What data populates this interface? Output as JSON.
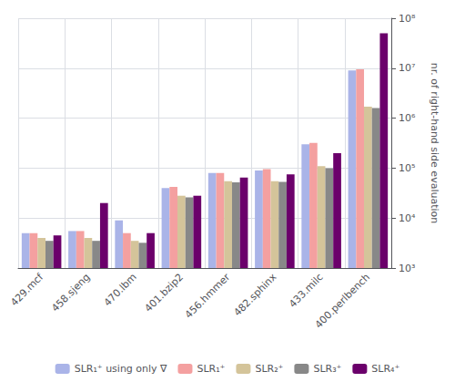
{
  "chart_data": {
    "type": "bar",
    "y_label": "nr. of right-hand side evaluation",
    "categories": [
      "429.mcf",
      "458.sjeng",
      "470.lbm",
      "401.bzip2",
      "456.hmmer",
      "482.sphinx",
      "433.milc",
      "400.perlbench"
    ],
    "series": [
      {
        "name": "SLR₁⁺ using only ∇",
        "color": "#aab4e8",
        "values": [
          5000,
          5500,
          9000,
          40000,
          80000,
          90000,
          300000,
          9000000
        ]
      },
      {
        "name": "SLR₁⁺",
        "color": "#f4a0a0",
        "values": [
          5000,
          5500,
          5000,
          42000,
          80000,
          95000,
          320000,
          9500000
        ]
      },
      {
        "name": "SLR₂⁺",
        "color": "#d4c49a",
        "values": [
          4000,
          4000,
          3500,
          28000,
          55000,
          55000,
          110000,
          1700000
        ]
      },
      {
        "name": "SLR₃⁺",
        "color": "#888888",
        "values": [
          3500,
          3500,
          3200,
          26000,
          52000,
          53000,
          100000,
          1600000
        ]
      },
      {
        "name": "SLR₄⁺",
        "color": "#6b006b",
        "values": [
          4500,
          20000,
          5000,
          28000,
          65000,
          75000,
          200000,
          50000000
        ]
      }
    ],
    "log": "y",
    "ylim": [
      1000,
      100000000
    ],
    "yticks": [
      {
        "value": 1000,
        "label": "10³"
      },
      {
        "value": 10000,
        "label": "10⁴"
      },
      {
        "value": 100000,
        "label": "10⁵"
      },
      {
        "value": 1000000,
        "label": "10⁶"
      },
      {
        "value": 10000000,
        "label": "10⁷"
      },
      {
        "value": 100000000,
        "label": "10⁸"
      }
    ],
    "grid": true,
    "legend": "bottom"
  }
}
